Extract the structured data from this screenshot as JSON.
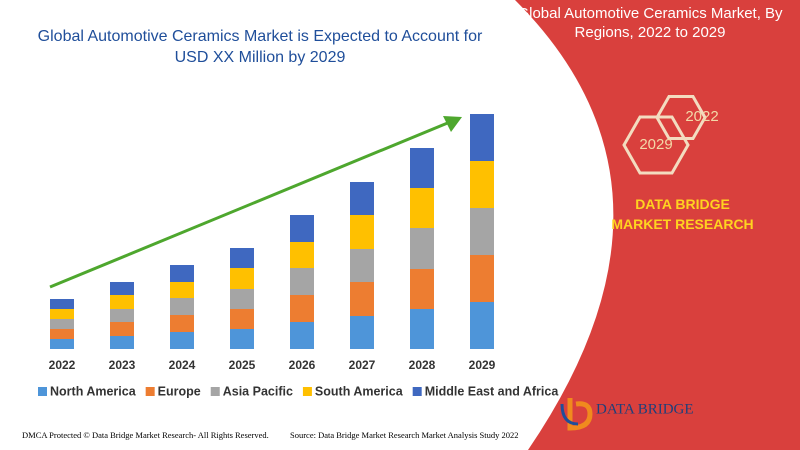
{
  "chart_data": {
    "type": "stacked-bar",
    "title": "Global Automotive Ceramics Market is Expected to Account for USD XX Million by 2029",
    "categories": [
      "2022",
      "2023",
      "2024",
      "2025",
      "2026",
      "2027",
      "2028",
      "2029"
    ],
    "ylim": [
      0,
      250
    ],
    "series": [
      {
        "name": "North America",
        "color": "#4e95d9",
        "values": [
          10,
          13,
          17,
          20,
          27,
          33,
          40,
          47
        ]
      },
      {
        "name": "Europe",
        "color": "#ed7d31",
        "values": [
          10,
          14,
          17,
          20,
          27,
          34,
          40,
          47
        ]
      },
      {
        "name": "Asia Pacific",
        "color": "#a5a5a5",
        "values": [
          10,
          13,
          17,
          20,
          27,
          33,
          41,
          47
        ]
      },
      {
        "name": "South America",
        "color": "#ffc000",
        "values": [
          10,
          14,
          16,
          21,
          26,
          34,
          40,
          47
        ]
      },
      {
        "name": "Middle East and Africa",
        "color": "#3f68c0",
        "values": [
          10,
          13,
          17,
          20,
          27,
          33,
          40,
          47
        ]
      }
    ]
  },
  "panel": {
    "title": "Global Automotive Ceramics Market, By Regions, 2022 to 2029",
    "hex_labels": [
      "2022",
      "2029"
    ],
    "brand": "DATA BRIDGE MARKET RESEARCH",
    "logo": "DATA BRIDGE"
  },
  "footer": {
    "left": "DMCA Protected © Data Bridge Market Research- All Rights Reserved.",
    "right": "Source: Data Bridge Market Research Market Analysis Study 2022"
  }
}
